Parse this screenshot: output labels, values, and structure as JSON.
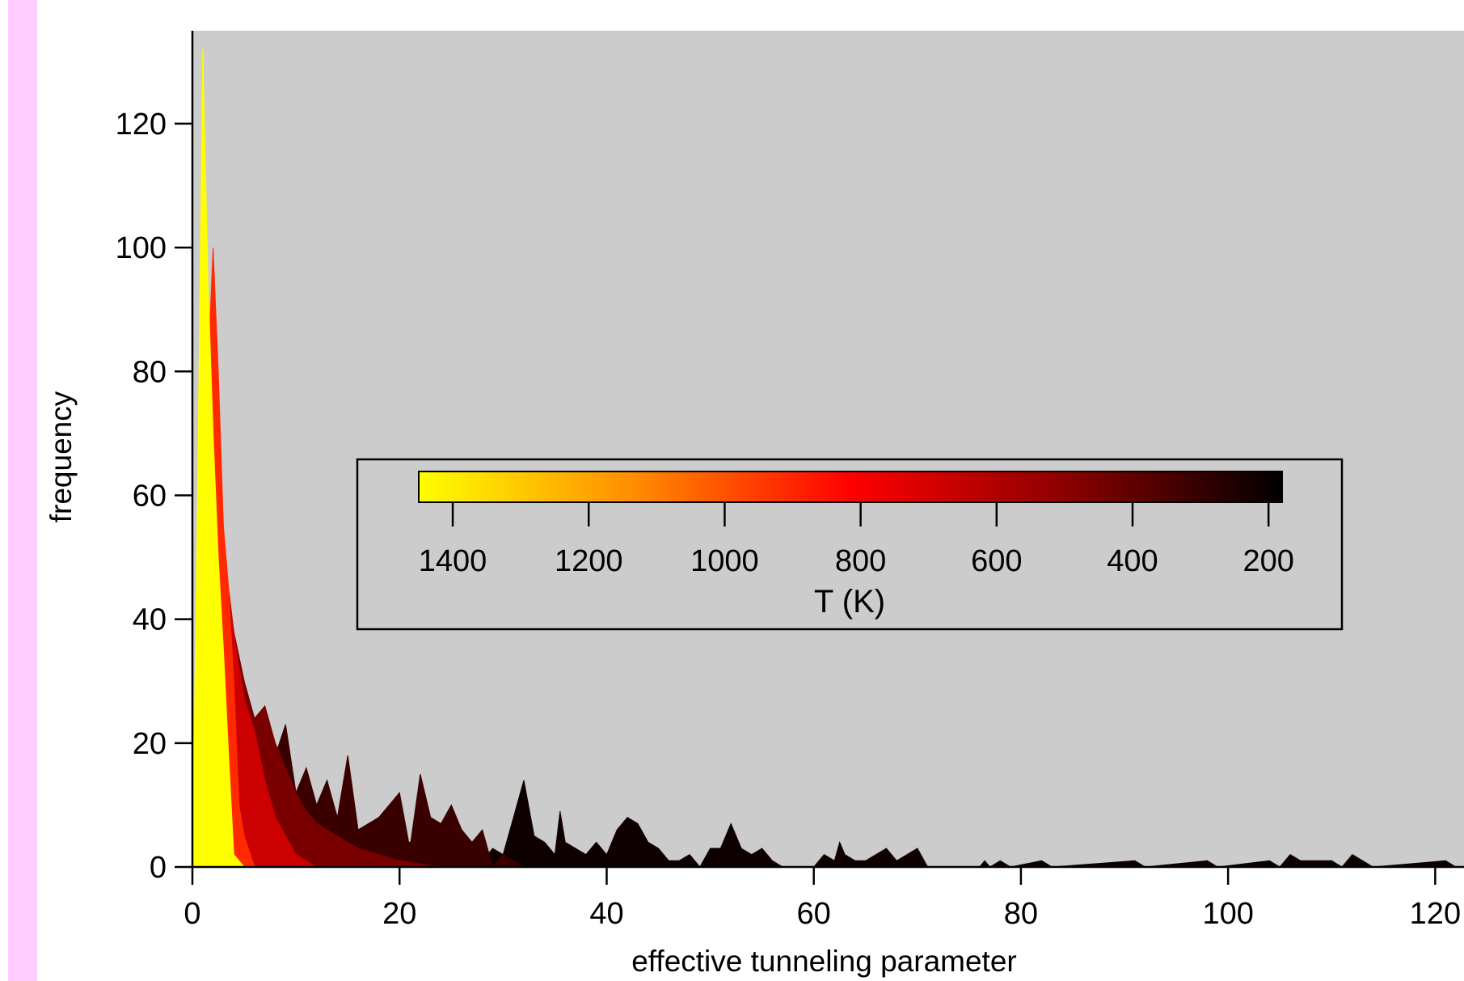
{
  "colors": {
    "page_background": "#ffffff",
    "side_strip": "#ffccff",
    "plot_background": "#cccccc",
    "axis": "#000000",
    "colorscale_stops": [
      "#ffff00",
      "#ff8c00",
      "#ff0000",
      "#8b0000",
      "#000000"
    ]
  },
  "chart_data": {
    "type": "area",
    "title": "",
    "xlabel": "effective tunneling parameter",
    "ylabel": "frequency",
    "xlim": [
      0,
      122
    ],
    "ylim": [
      0,
      135
    ],
    "xticks": [
      0,
      20,
      40,
      60,
      80,
      100,
      120
    ],
    "yticks": [
      0,
      20,
      40,
      60,
      80,
      100,
      120
    ],
    "grid": false,
    "colorbar": {
      "label": "T (K)",
      "range": [
        1450,
        180
      ],
      "ticks": [
        1400,
        1200,
        1000,
        800,
        600,
        400,
        200
      ],
      "colormap": "yellow-red-black",
      "placement": "center"
    },
    "series": [
      {
        "T": 1400,
        "color": "#ffff00",
        "points": [
          [
            0,
            0
          ],
          [
            0.5,
            60
          ],
          [
            1,
            132
          ],
          [
            1.5,
            95
          ],
          [
            2,
            70
          ],
          [
            2.5,
            50
          ],
          [
            3,
            35
          ],
          [
            3.5,
            18
          ],
          [
            4,
            2
          ],
          [
            5,
            0
          ]
        ]
      },
      {
        "T": 1000,
        "color": "#ff2a00",
        "points": [
          [
            0,
            0
          ],
          [
            1,
            60
          ],
          [
            2,
            100
          ],
          [
            2.5,
            80
          ],
          [
            3,
            55
          ],
          [
            3.5,
            45
          ],
          [
            4,
            30
          ],
          [
            4.5,
            10
          ],
          [
            5,
            5
          ],
          [
            6,
            0
          ]
        ]
      },
      {
        "T": 800,
        "color": "#cc0000",
        "points": [
          [
            0,
            0
          ],
          [
            1,
            40
          ],
          [
            2,
            92
          ],
          [
            2.5,
            70
          ],
          [
            3,
            52
          ],
          [
            4,
            38
          ],
          [
            5,
            27
          ],
          [
            6,
            22
          ],
          [
            7,
            14
          ],
          [
            8,
            8
          ],
          [
            10,
            2
          ],
          [
            12,
            0
          ]
        ]
      },
      {
        "T": 600,
        "color": "#7a0000",
        "points": [
          [
            0,
            0
          ],
          [
            2,
            60
          ],
          [
            3,
            50
          ],
          [
            4,
            38
          ],
          [
            5,
            30
          ],
          [
            6,
            24
          ],
          [
            7,
            26
          ],
          [
            8,
            20
          ],
          [
            9,
            16
          ],
          [
            10,
            12
          ],
          [
            11,
            9
          ],
          [
            12,
            7
          ],
          [
            14,
            5
          ],
          [
            16,
            3
          ],
          [
            20,
            1
          ],
          [
            24,
            0
          ]
        ]
      },
      {
        "T": 400,
        "color": "#3a0000",
        "points": [
          [
            0,
            0
          ],
          [
            3,
            45
          ],
          [
            4,
            35
          ],
          [
            5,
            25
          ],
          [
            6,
            22
          ],
          [
            7,
            25
          ],
          [
            8,
            18
          ],
          [
            9,
            23
          ],
          [
            10,
            12
          ],
          [
            11,
            16
          ],
          [
            12,
            10
          ],
          [
            13,
            14
          ],
          [
            14,
            8
          ],
          [
            15,
            18
          ],
          [
            16,
            6
          ],
          [
            18,
            8
          ],
          [
            20,
            12
          ],
          [
            21,
            3
          ],
          [
            22,
            15
          ],
          [
            23,
            8
          ],
          [
            24,
            7
          ],
          [
            25,
            10
          ],
          [
            26,
            6
          ],
          [
            27,
            4
          ],
          [
            28,
            6
          ],
          [
            29,
            0
          ],
          [
            30,
            2
          ],
          [
            32,
            0
          ]
        ]
      },
      {
        "T": 200,
        "color": "#0f0000",
        "points": [
          [
            0,
            0
          ],
          [
            4,
            25
          ],
          [
            6,
            20
          ],
          [
            8,
            16
          ],
          [
            10,
            10
          ],
          [
            12,
            8
          ],
          [
            14,
            5
          ],
          [
            16,
            6
          ],
          [
            18,
            4
          ],
          [
            20,
            3
          ],
          [
            22,
            5
          ],
          [
            24,
            4
          ],
          [
            26,
            3
          ],
          [
            28,
            1
          ],
          [
            29,
            3
          ],
          [
            30,
            2
          ],
          [
            31,
            8
          ],
          [
            32,
            14
          ],
          [
            33,
            5
          ],
          [
            34,
            4
          ],
          [
            35,
            2
          ],
          [
            35.5,
            9
          ],
          [
            36,
            4
          ],
          [
            37,
            3
          ],
          [
            38,
            2
          ],
          [
            39,
            4
          ],
          [
            40,
            2
          ],
          [
            41,
            6
          ],
          [
            42,
            8
          ],
          [
            43,
            7
          ],
          [
            44,
            4
          ],
          [
            45,
            3
          ],
          [
            46,
            1
          ],
          [
            47,
            1
          ],
          [
            48,
            2
          ],
          [
            49,
            0
          ],
          [
            50,
            3
          ],
          [
            51,
            3
          ],
          [
            52,
            7
          ],
          [
            53,
            3
          ],
          [
            54,
            2
          ],
          [
            55,
            3
          ],
          [
            56,
            1
          ],
          [
            57,
            0
          ],
          [
            58,
            0
          ],
          [
            60,
            0
          ],
          [
            61,
            2
          ],
          [
            62,
            1
          ],
          [
            62.5,
            4
          ],
          [
            63,
            2
          ],
          [
            64,
            1
          ],
          [
            65,
            1
          ],
          [
            66,
            2
          ],
          [
            67,
            3
          ],
          [
            68,
            1
          ],
          [
            69,
            2
          ],
          [
            70,
            3
          ],
          [
            71,
            0
          ],
          [
            76,
            0
          ],
          [
            76.5,
            1
          ],
          [
            77,
            0
          ],
          [
            78,
            1
          ],
          [
            79,
            0
          ],
          [
            82,
            1
          ],
          [
            83,
            0
          ],
          [
            91,
            1
          ],
          [
            92,
            0
          ],
          [
            98,
            1
          ],
          [
            99,
            0
          ],
          [
            104,
            1
          ],
          [
            105,
            0
          ],
          [
            106,
            2
          ],
          [
            107,
            1
          ],
          [
            108,
            1
          ],
          [
            110,
            1
          ],
          [
            111,
            0
          ],
          [
            112,
            2
          ],
          [
            113,
            1
          ],
          [
            114,
            0
          ],
          [
            121,
            1
          ],
          [
            122,
            0
          ]
        ]
      }
    ]
  }
}
